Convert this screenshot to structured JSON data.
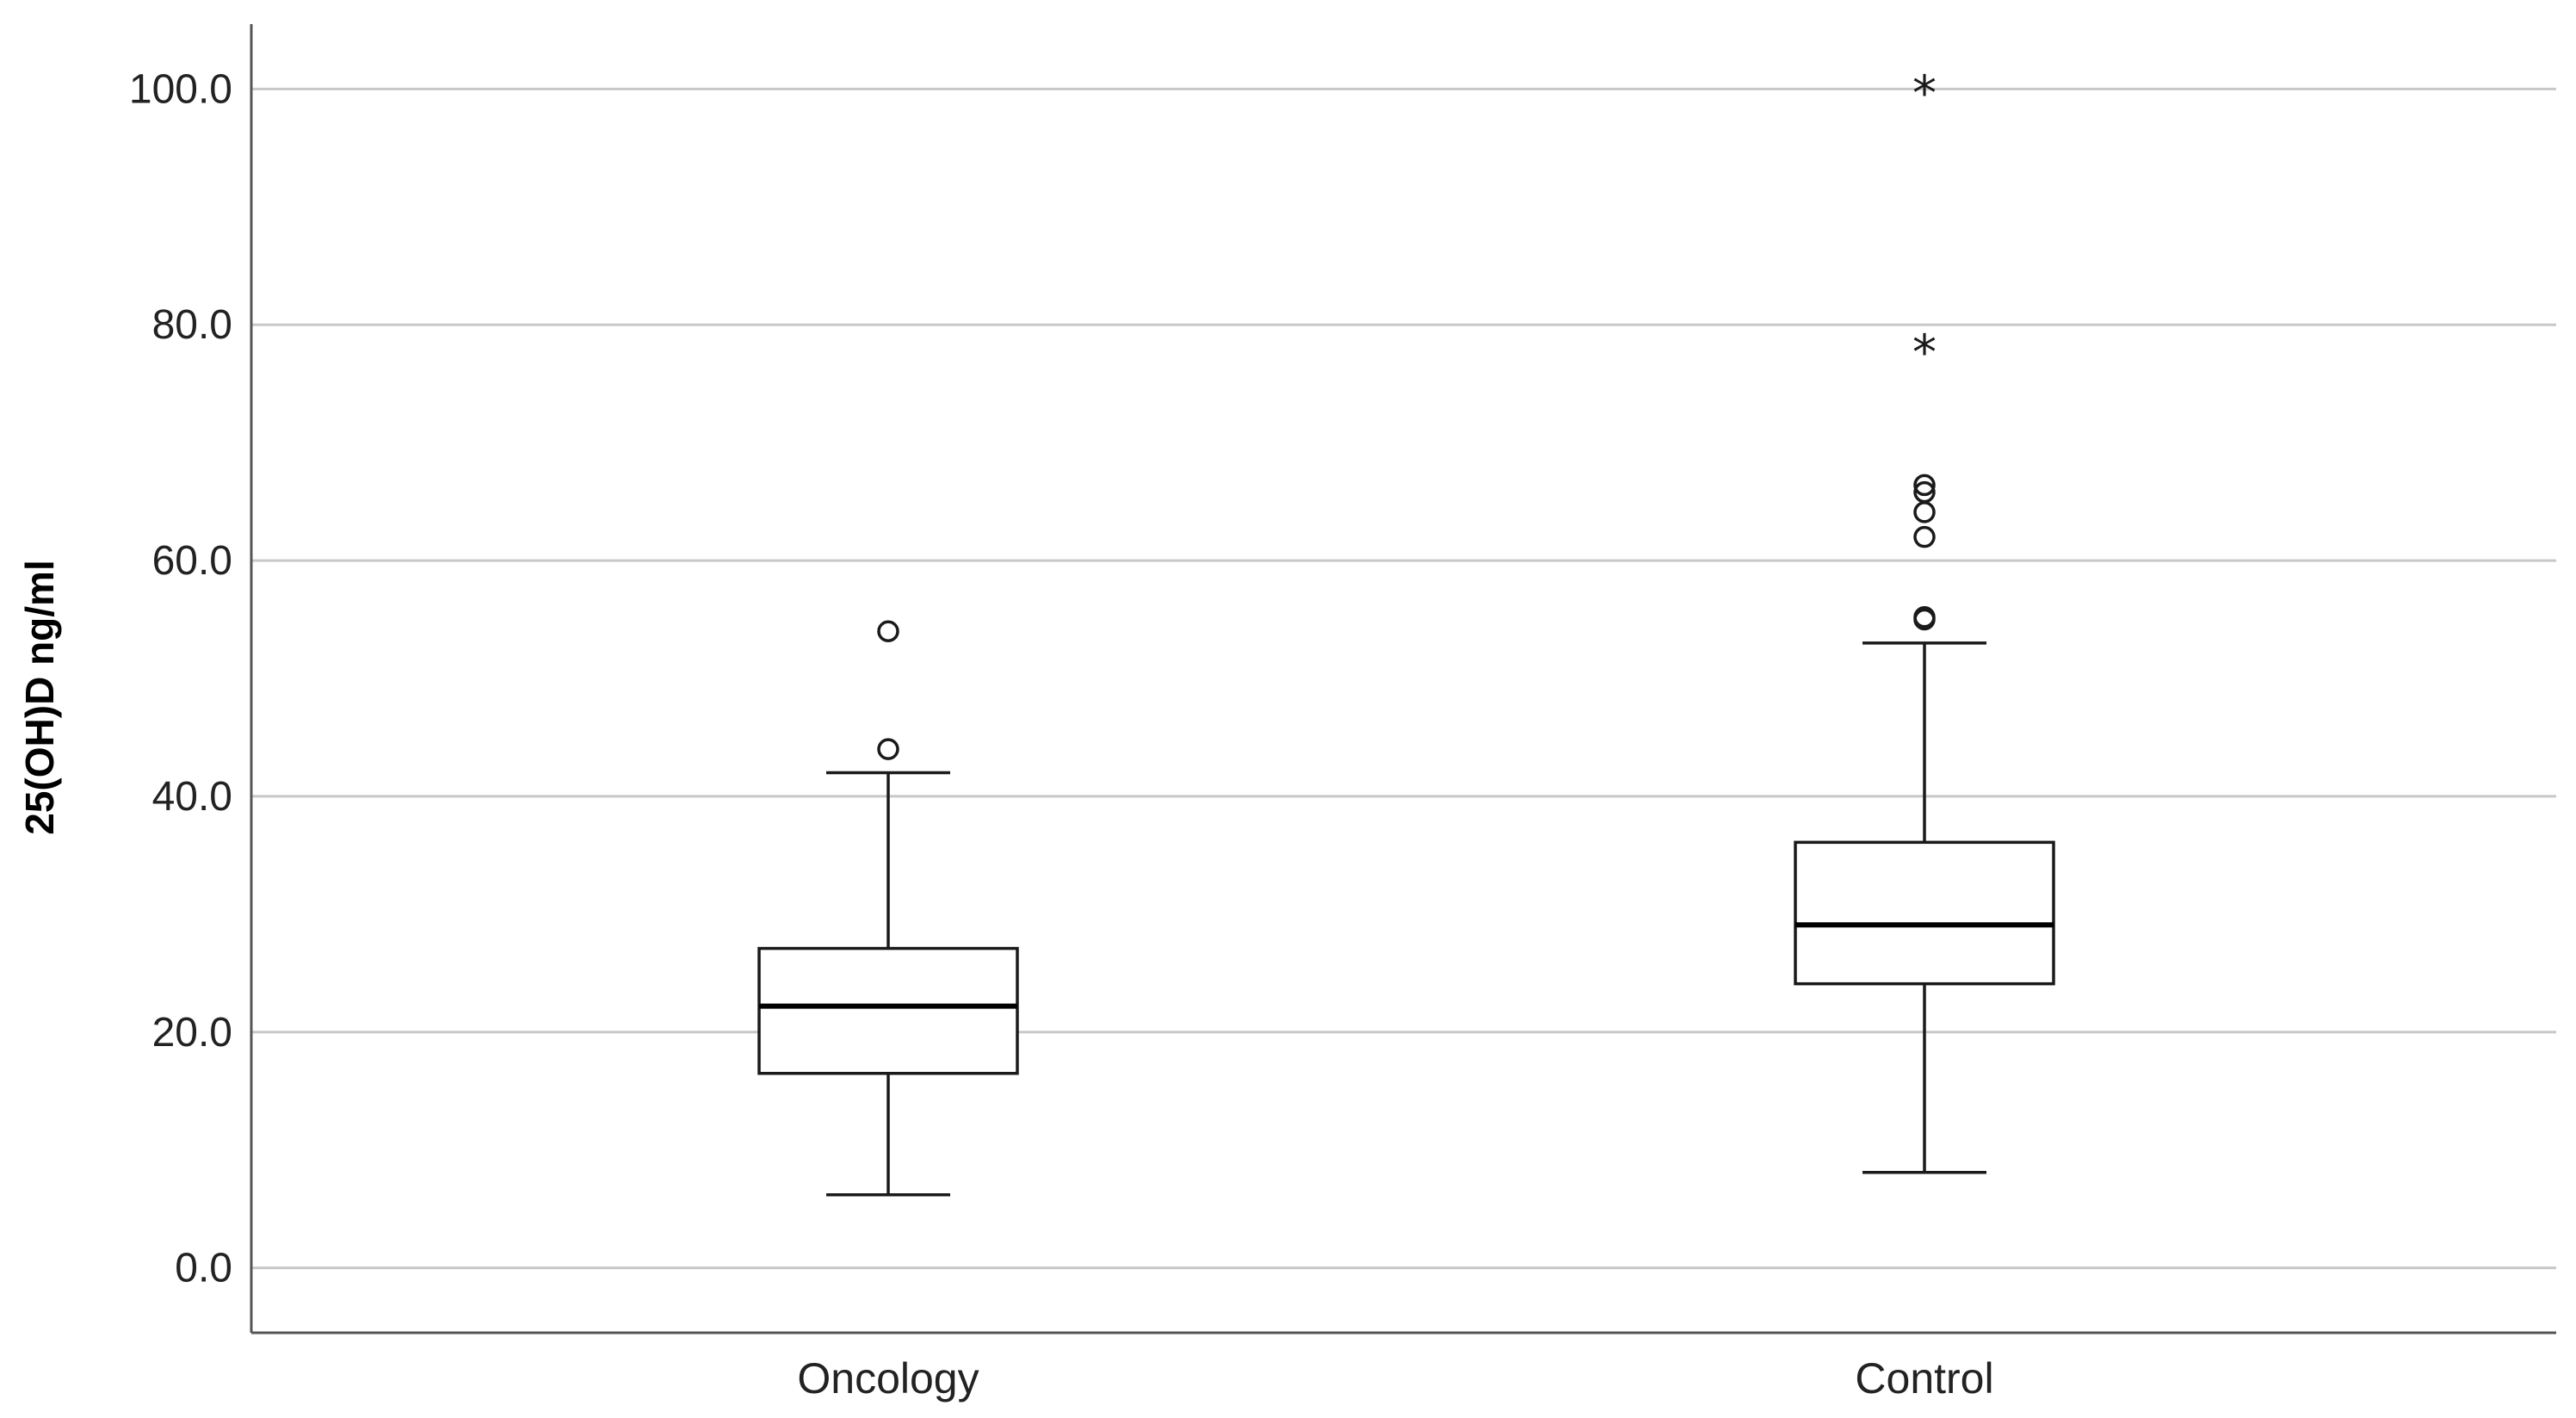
{
  "chart_data": {
    "type": "box",
    "ylabel": "25(OH)D ng/ml",
    "xlabel": "",
    "ylim": [
      -5.5,
      105.5
    ],
    "yticks": [
      0,
      20,
      40,
      60,
      80,
      100
    ],
    "ytick_labels": [
      "0.0",
      "20.0",
      "40.0",
      "60.0",
      "80.0",
      "100.0"
    ],
    "grid": "horizontal",
    "categories": [
      "Oncology",
      "Control"
    ],
    "boxes": [
      {
        "category": "Oncology",
        "whisker_low": 6.2,
        "q1": 16.5,
        "median": 22.2,
        "q3": 27.1,
        "whisker_high": 42.0,
        "outliers": [
          44.0,
          54.0
        ],
        "extremes": []
      },
      {
        "category": "Control",
        "whisker_low": 8.1,
        "q1": 24.1,
        "median": 29.1,
        "q3": 36.1,
        "whisker_high": 53.0,
        "outliers": [
          55.0,
          55.2,
          62.0,
          64.1,
          65.8,
          66.4
        ],
        "extremes": [
          78.0,
          100.0
        ]
      }
    ],
    "extreme_symbol": "*"
  }
}
